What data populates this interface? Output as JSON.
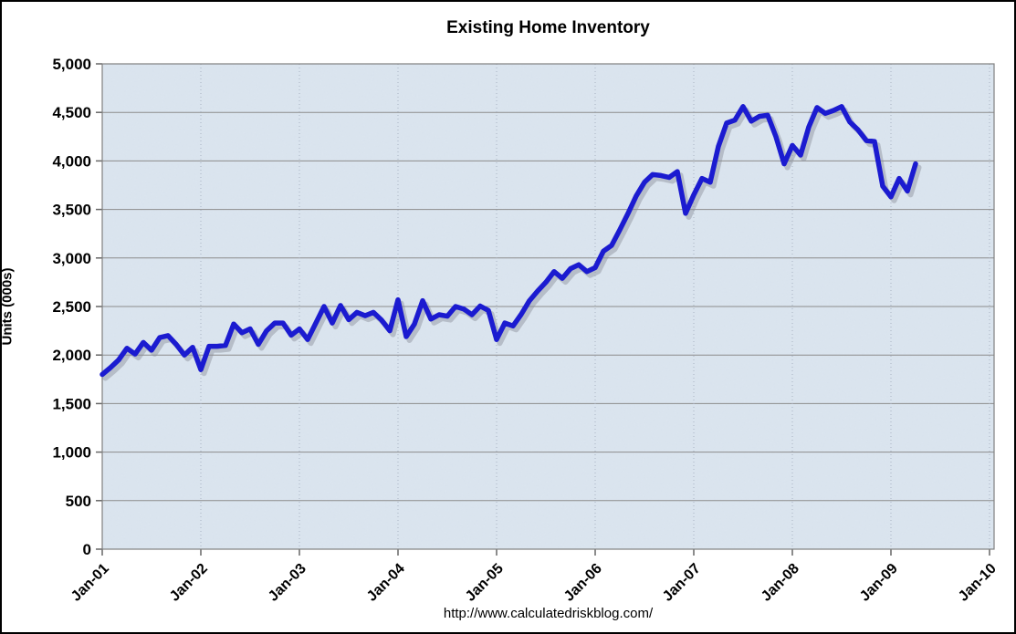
{
  "page": {
    "title": "Existing Home Inventory",
    "footer_url": "http://www.calculatedriskblog.com/"
  },
  "chart_data": {
    "type": "line",
    "title": "Existing Home Inventory",
    "xlabel": "",
    "ylabel": "Units (000s)",
    "ylim": [
      0,
      5000
    ],
    "y_tick_interval": 500,
    "y_tick_labels": [
      "0",
      "500",
      "1,000",
      "1,500",
      "2,000",
      "2,500",
      "3,000",
      "3,500",
      "4,000",
      "4,500",
      "5,000"
    ],
    "x_tick_labels": [
      "Jan-01",
      "Jan-02",
      "Jan-03",
      "Jan-04",
      "Jan-05",
      "Jan-06",
      "Jan-07",
      "Jan-08",
      "Jan-09",
      "Jan-10"
    ],
    "x_axis_span_months": 108,
    "legend_position": "none",
    "grid": {
      "horizontal": "solid",
      "vertical": "dotted"
    },
    "series": [
      {
        "name": "Existing Home Inventory",
        "unit": "thousands of units",
        "frequency": "monthly",
        "start": "Jan-01",
        "end": "Apr-09",
        "values": [
          1800,
          1870,
          1950,
          2070,
          2010,
          2130,
          2050,
          2180,
          2200,
          2110,
          2000,
          2080,
          1850,
          2090,
          2090,
          2100,
          2320,
          2230,
          2270,
          2110,
          2250,
          2330,
          2330,
          2205,
          2270,
          2160,
          2330,
          2500,
          2330,
          2510,
          2365,
          2440,
          2405,
          2440,
          2360,
          2250,
          2570,
          2190,
          2320,
          2560,
          2370,
          2415,
          2400,
          2500,
          2475,
          2415,
          2505,
          2460,
          2160,
          2330,
          2300,
          2420,
          2560,
          2660,
          2750,
          2860,
          2790,
          2890,
          2930,
          2860,
          2900,
          3070,
          3130,
          3290,
          3460,
          3640,
          3780,
          3860,
          3850,
          3830,
          3890,
          3460,
          3650,
          3820,
          3780,
          4150,
          4390,
          4420,
          4560,
          4410,
          4460,
          4470,
          4250,
          3970,
          4160,
          4060,
          4350,
          4550,
          4490,
          4520,
          4560,
          4400,
          4320,
          4210,
          4200,
          3740,
          3630,
          3820,
          3690,
          3970
        ]
      }
    ],
    "colors": {
      "line": "#1b1bd0",
      "line_shadow": "#8a8f98",
      "plot_bg": "#dce6f0",
      "h_gridline": "#8c8c8c",
      "v_gridline": "#a8b2c2",
      "plot_border": "#808080",
      "axis": "#666666",
      "text": "#000000"
    }
  }
}
